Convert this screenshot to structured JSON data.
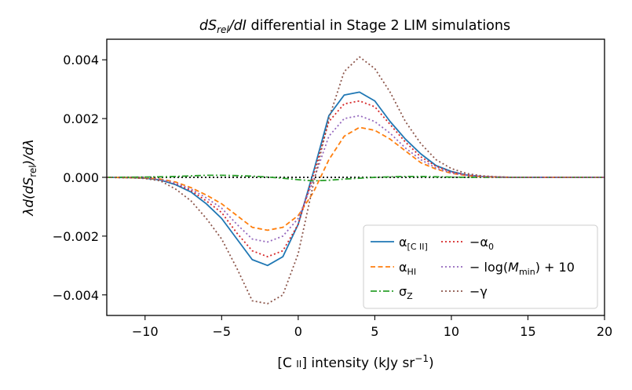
{
  "chart_data": {
    "type": "line",
    "title": "dS_rel/dI differential in Stage 2 LIM simulations",
    "title_parts": {
      "math": "dS",
      "sub": "rel",
      "math2": "/dI",
      "rest": " differential in Stage 2 LIM simulations"
    },
    "xlabel": "[C ii] intensity (kJy sr⁻¹)",
    "xlabel_parts": {
      "main": "[C ",
      "roman": "II",
      "unit": "] intensity (kJy sr",
      "sup": "−1",
      "close": ")"
    },
    "ylabel": "λ d(dS_rel)/dλ",
    "ylabel_parts": {
      "pre": "λd(dS",
      "sub": "rel",
      "post": ")/dλ"
    },
    "xlim": [
      -12.5,
      20
    ],
    "ylim": [
      -0.0047,
      0.0047
    ],
    "x_ticks": [
      -10,
      -5,
      0,
      5,
      10,
      15,
      20
    ],
    "x_tick_labels": [
      "−10",
      "−5",
      "0",
      "5",
      "10",
      "15",
      "20"
    ],
    "y_ticks": [
      -0.004,
      -0.002,
      0.0,
      0.002,
      0.004
    ],
    "y_tick_labels": [
      "−0.004",
      "−0.002",
      "0.000",
      "0.002",
      "0.004"
    ],
    "grid": false,
    "legend_position": "lower-right",
    "zero_line": {
      "y": 0,
      "style": "dotted",
      "color": "#000000"
    },
    "x": [
      -12.5,
      -11,
      -10,
      -9,
      -8,
      -7,
      -6,
      -5,
      -4,
      -3,
      -2,
      -1,
      0,
      1,
      2,
      3,
      4,
      5,
      6,
      7,
      8,
      9,
      10,
      11,
      12,
      13,
      14,
      15,
      16,
      17,
      18,
      19,
      20
    ],
    "series": [
      {
        "name_parts": {
          "pre": "α",
          "sub": "[C II]"
        },
        "color": "#1f77b4",
        "dash": "solid",
        "values": [
          0,
          -1e-05,
          -3e-05,
          -9e-05,
          -0.00025,
          -0.0005,
          -0.0009,
          -0.0014,
          -0.0021,
          -0.0028,
          -0.003,
          -0.0027,
          -0.0016,
          0.0002,
          0.0021,
          0.0028,
          0.0029,
          0.0026,
          0.0019,
          0.0013,
          0.0008,
          0.0004,
          0.0002,
          8e-05,
          3e-05,
          1e-05,
          0,
          0,
          0,
          0,
          0,
          0,
          0
        ]
      },
      {
        "name_parts": {
          "pre": "α",
          "sub": "HI"
        },
        "color": "#ff7f0e",
        "dash": "dashed",
        "values": [
          0,
          -1e-05,
          -2e-05,
          -6e-05,
          -0.00016,
          -0.00035,
          -0.0006,
          -0.0009,
          -0.0013,
          -0.0017,
          -0.0018,
          -0.0017,
          -0.0013,
          -0.0005,
          0.0006,
          0.0014,
          0.0017,
          0.0016,
          0.0013,
          0.0009,
          0.0005,
          0.00028,
          0.00014,
          6e-05,
          2e-05,
          1e-05,
          0,
          0,
          0,
          0,
          0,
          0,
          0
        ]
      },
      {
        "name_parts": {
          "pre": "σ",
          "sub": "Z"
        },
        "color": "#2ca02c",
        "dash": "dashdot",
        "values": [
          0,
          5e-06,
          1e-05,
          2e-05,
          3e-05,
          5e-05,
          7e-05,
          7e-05,
          6e-05,
          4e-05,
          1e-05,
          -3e-05,
          -8e-05,
          -0.00012,
          -0.0001,
          -6e-05,
          -3e-05,
          0,
          2e-05,
          3e-05,
          3e-05,
          2e-05,
          1e-05,
          0,
          0,
          0,
          0,
          0,
          0,
          0,
          0,
          0,
          0
        ]
      },
      {
        "name_parts": {
          "pre": "−α",
          "sub": "0"
        },
        "color": "#d62728",
        "dash": "dotted",
        "values": [
          0,
          -1e-05,
          -3e-05,
          -8e-05,
          -0.00022,
          -0.00045,
          -0.0008,
          -0.0012,
          -0.0019,
          -0.0025,
          -0.0027,
          -0.0025,
          -0.0016,
          0.0001,
          0.0019,
          0.0025,
          0.0026,
          0.0024,
          0.0018,
          0.0012,
          0.0007,
          0.00038,
          0.00018,
          8e-05,
          3e-05,
          1e-05,
          0,
          0,
          0,
          0,
          0,
          0,
          0
        ]
      },
      {
        "name_parts": {
          "pre": "− log(",
          "mid": "M",
          "sub": "min",
          "post": ") + 10"
        },
        "color": "#9467bd",
        "dash": "dotted",
        "values": [
          0,
          -1e-05,
          -2e-05,
          -7e-05,
          -0.0002,
          -0.0004,
          -0.0007,
          -0.00105,
          -0.0016,
          -0.0021,
          -0.0022,
          -0.002,
          -0.0014,
          -0.0001,
          0.0014,
          0.002,
          0.0021,
          0.0019,
          0.0015,
          0.001,
          0.0006,
          0.00032,
          0.00015,
          7e-05,
          3e-05,
          1e-05,
          0,
          0,
          0,
          0,
          0,
          0,
          0
        ]
      },
      {
        "name_parts": {
          "pre": "−γ",
          "sub": ""
        },
        "color": "#8c564b",
        "dash": "dotted",
        "values": [
          0,
          -1e-05,
          -4e-05,
          -0.00012,
          -0.0004,
          -0.0008,
          -0.0014,
          -0.0021,
          -0.0031,
          -0.0042,
          -0.0043,
          -0.004,
          -0.0026,
          -0.0002,
          0.002,
          0.0036,
          0.0041,
          0.0037,
          0.0029,
          0.0019,
          0.00115,
          0.0006,
          0.0003,
          0.00013,
          5e-05,
          2e-05,
          0,
          0,
          0,
          0,
          0,
          0,
          0
        ]
      }
    ]
  }
}
